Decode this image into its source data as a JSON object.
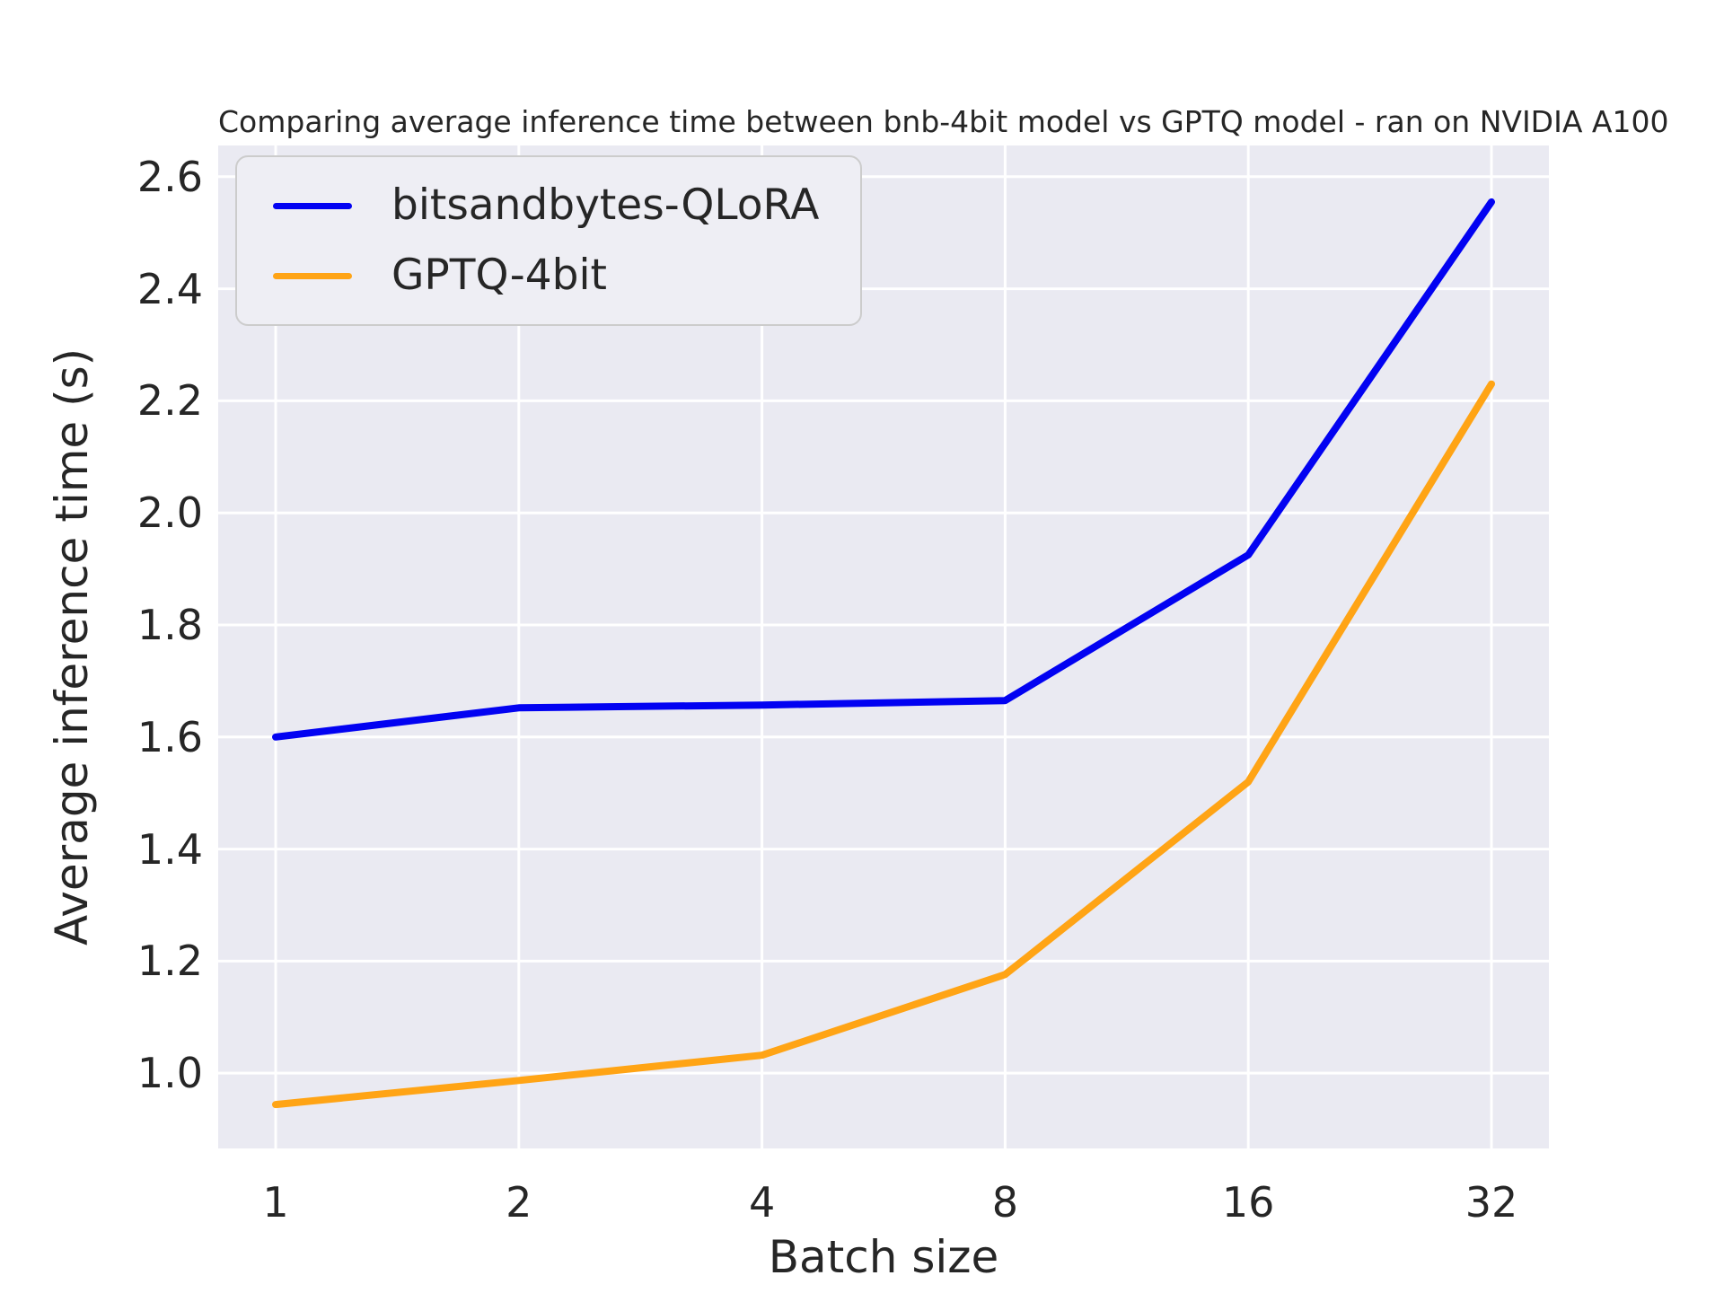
{
  "chart_data": {
    "type": "line",
    "title": "Comparing average inference time between bnb-4bit model vs GPTQ model - ran on NVIDIA A100",
    "xlabel": "Batch size",
    "ylabel": "Average inference time (s)",
    "categories": [
      "1",
      "2",
      "4",
      "8",
      "16",
      "32"
    ],
    "x_spacing": "categorical-even (log2 batch sizes)",
    "series": [
      {
        "name": "bitsandbytes-QLoRA",
        "color": "#0202f2",
        "values": [
          1.6,
          1.652,
          1.657,
          1.665,
          1.925,
          2.555
        ]
      },
      {
        "name": "GPTQ-4bit",
        "color": "#ffa415",
        "values": [
          0.944,
          0.987,
          1.032,
          1.176,
          1.52,
          2.23
        ]
      }
    ],
    "y_ticks": [
      1.0,
      1.2,
      1.4,
      1.6,
      1.8,
      2.0,
      2.2,
      2.4,
      2.6
    ],
    "y_tick_format": "one-decimal",
    "ylim": [
      0.8656,
      2.6558
    ],
    "grid": true,
    "gridline_color": "#ffffff",
    "plot_background": "#eaeaf2",
    "figure_background": "#ffffff",
    "text_color": "#262626",
    "legend_position": "upper left",
    "line_width": 8
  }
}
